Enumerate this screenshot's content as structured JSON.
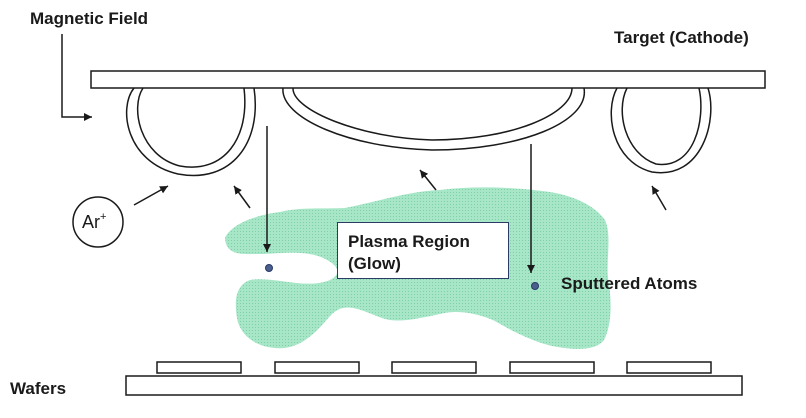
{
  "labels": {
    "magnetic_field": "Magnetic Field",
    "target": "Target (Cathode)",
    "wafers": "Wafers",
    "sputtered_atoms": "Sputtered Atoms",
    "ion": "Ar",
    "ion_charge": "+",
    "plasma_line1": "Plasma Region",
    "plasma_line2": "(Glow)"
  },
  "colors": {
    "plasma": "#a8e6c8",
    "outline": "#1a1a1a",
    "atom": "#4a5f8c"
  },
  "counts": {
    "wafer_chips": 5,
    "magnetic_loops": 3
  }
}
